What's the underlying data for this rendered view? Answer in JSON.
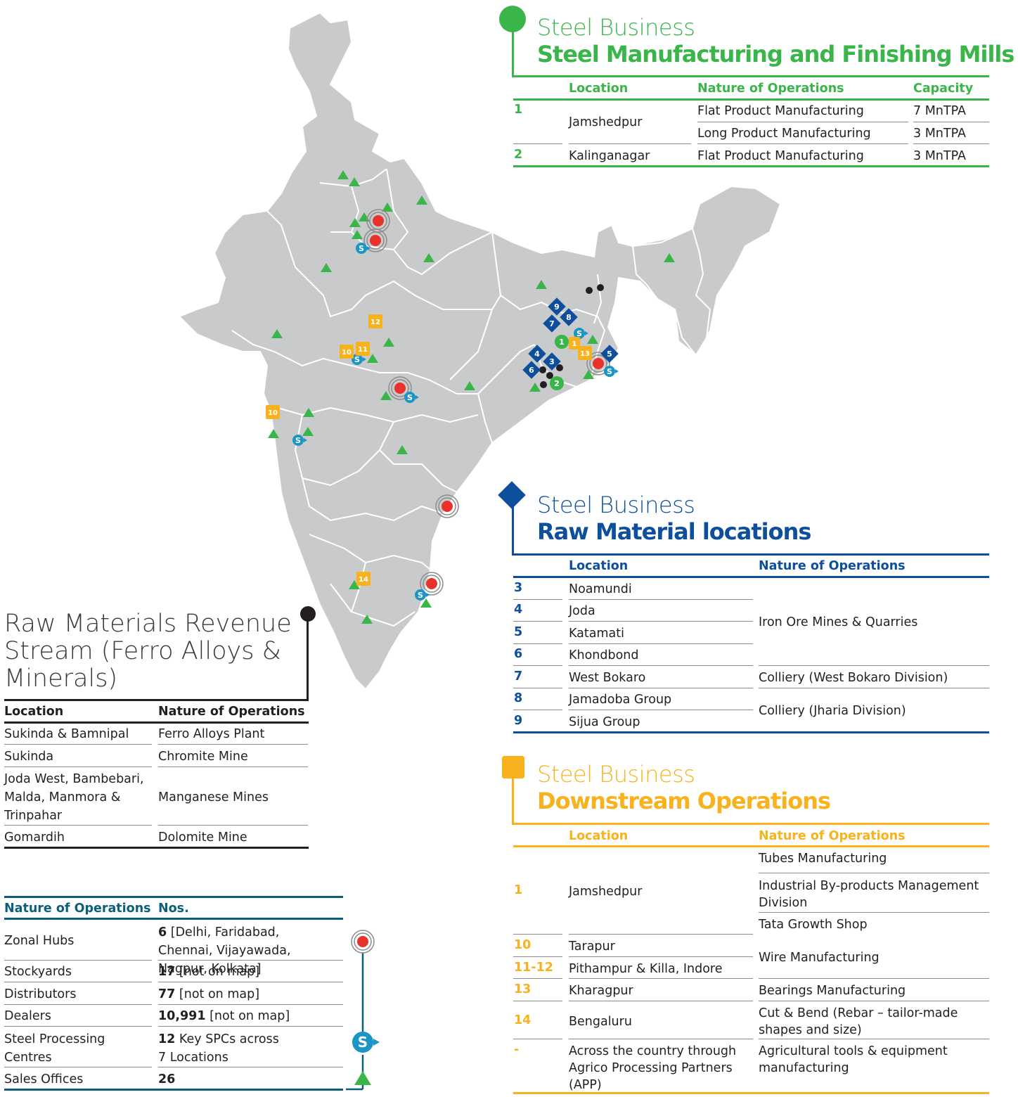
{
  "mills": {
    "subtitle": "Steel Business",
    "title": "Steel Manufacturing and Finishing Mills",
    "headers": {
      "location": "Location",
      "nature": "Nature of Operations",
      "capacity": "Capacity"
    },
    "rows": [
      {
        "num": "1",
        "location": "Jamshedpur",
        "nature": "Flat Product Manufacturing",
        "capacity": "7 MnTPA"
      },
      {
        "nature": "Long Product Manufacturing",
        "capacity": "3 MnTPA"
      },
      {
        "num": "2",
        "location": "Kalinganagar",
        "nature": "Flat Product Manufacturing",
        "capacity": "3 MnTPA"
      }
    ]
  },
  "raw": {
    "subtitle": "Steel Business",
    "title": "Raw Material locations",
    "headers": {
      "location": "Location",
      "nature": "Nature of Operations"
    },
    "rows": [
      {
        "num": "3",
        "location": "Noamundi"
      },
      {
        "num": "4",
        "location": "Joda"
      },
      {
        "num": "5",
        "location": "Katamati"
      },
      {
        "num": "6",
        "location": "Khondbond"
      },
      {
        "num": "7",
        "location": "West Bokaro"
      },
      {
        "num": "8",
        "location": "Jamadoba Group"
      },
      {
        "num": "9",
        "location": "Sijua Group"
      }
    ],
    "natures": [
      "Iron Ore Mines & Quarries",
      "Colliery (West Bokaro Division)",
      "Colliery (Jharia Division)"
    ]
  },
  "down": {
    "subtitle": "Steel Business",
    "title": "Downstream Operations",
    "headers": {
      "location": "Location",
      "nature": "Nature of Operations"
    },
    "rows": [
      {
        "num": "1",
        "location": "Jamshedpur"
      },
      {
        "num": "10",
        "location": "Tarapur"
      },
      {
        "num": "11-12",
        "location": "Pithampur & Killa, Indore"
      },
      {
        "num": "13",
        "location": "Kharagpur",
        "nature": "Bearings Manufacturing"
      },
      {
        "num": "14",
        "location": "Bengaluru"
      },
      {
        "num": "-",
        "location": "Across the country through Agrico Processing Partners (APP)"
      }
    ],
    "jamshedpur_natures": [
      "Tubes Manufacturing",
      "Industrial By-products Management Division",
      "Tata Growth Shop"
    ],
    "wire": "Wire Manufacturing",
    "cutbend": "Cut & Bend (Rebar – tailor-made shapes and size)",
    "agri": "Agricultural tools & equipment manufacturing"
  },
  "ferro": {
    "title": "Raw Materials Revenue Stream (Ferro Alloys & Minerals)",
    "headers": {
      "location": "Location",
      "nature": "Nature of Operations"
    },
    "rows": [
      {
        "location": "Sukinda & Bamnipal",
        "nature": "Ferro Alloys Plant"
      },
      {
        "location": "Sukinda",
        "nature": "Chromite Mine"
      },
      {
        "location": "Joda West, Bambebari, Malda, Manmora & Trinpahar",
        "nature": "Manganese Mines"
      },
      {
        "location": "Gomardih",
        "nature": "Dolomite Mine"
      }
    ]
  },
  "network": {
    "headers": {
      "nature": "Nature of Operations",
      "nos": "Nos."
    },
    "rows": [
      {
        "nature": "Zonal Hubs",
        "bold": "6",
        "rest": " [Delhi, Faridabad, Chennai, Vijayawada, Nagpur, Kolkata]"
      },
      {
        "nature": "Stockyards",
        "bold": "17",
        "rest": " [not on map]"
      },
      {
        "nature": "Distributors",
        "bold": "77",
        "rest": " [not on map]"
      },
      {
        "nature": "Dealers",
        "bold": "10,991",
        "rest": " [not on map]"
      },
      {
        "nature": "Steel Processing Centres",
        "bold": "12",
        "rest": " Key SPCs across 7 Locations"
      },
      {
        "nature": "Sales Offices",
        "bold": "26",
        "rest": ""
      }
    ]
  },
  "map": {
    "marker_labels": {
      "mills": [
        "1",
        "2"
      ],
      "raw": [
        "3",
        "4",
        "5",
        "6",
        "7",
        "8",
        "9"
      ],
      "down": [
        "1",
        "10",
        "10",
        "11",
        "12",
        "13",
        "14"
      ],
      "sales_office": "S"
    }
  },
  "colors": {
    "mills": "#3ab54a",
    "raw": "#0d4f9c",
    "down": "#f7b21d",
    "network": "#0c5f7c",
    "hub": "#e8322b",
    "map": "#c8c9cb"
  }
}
